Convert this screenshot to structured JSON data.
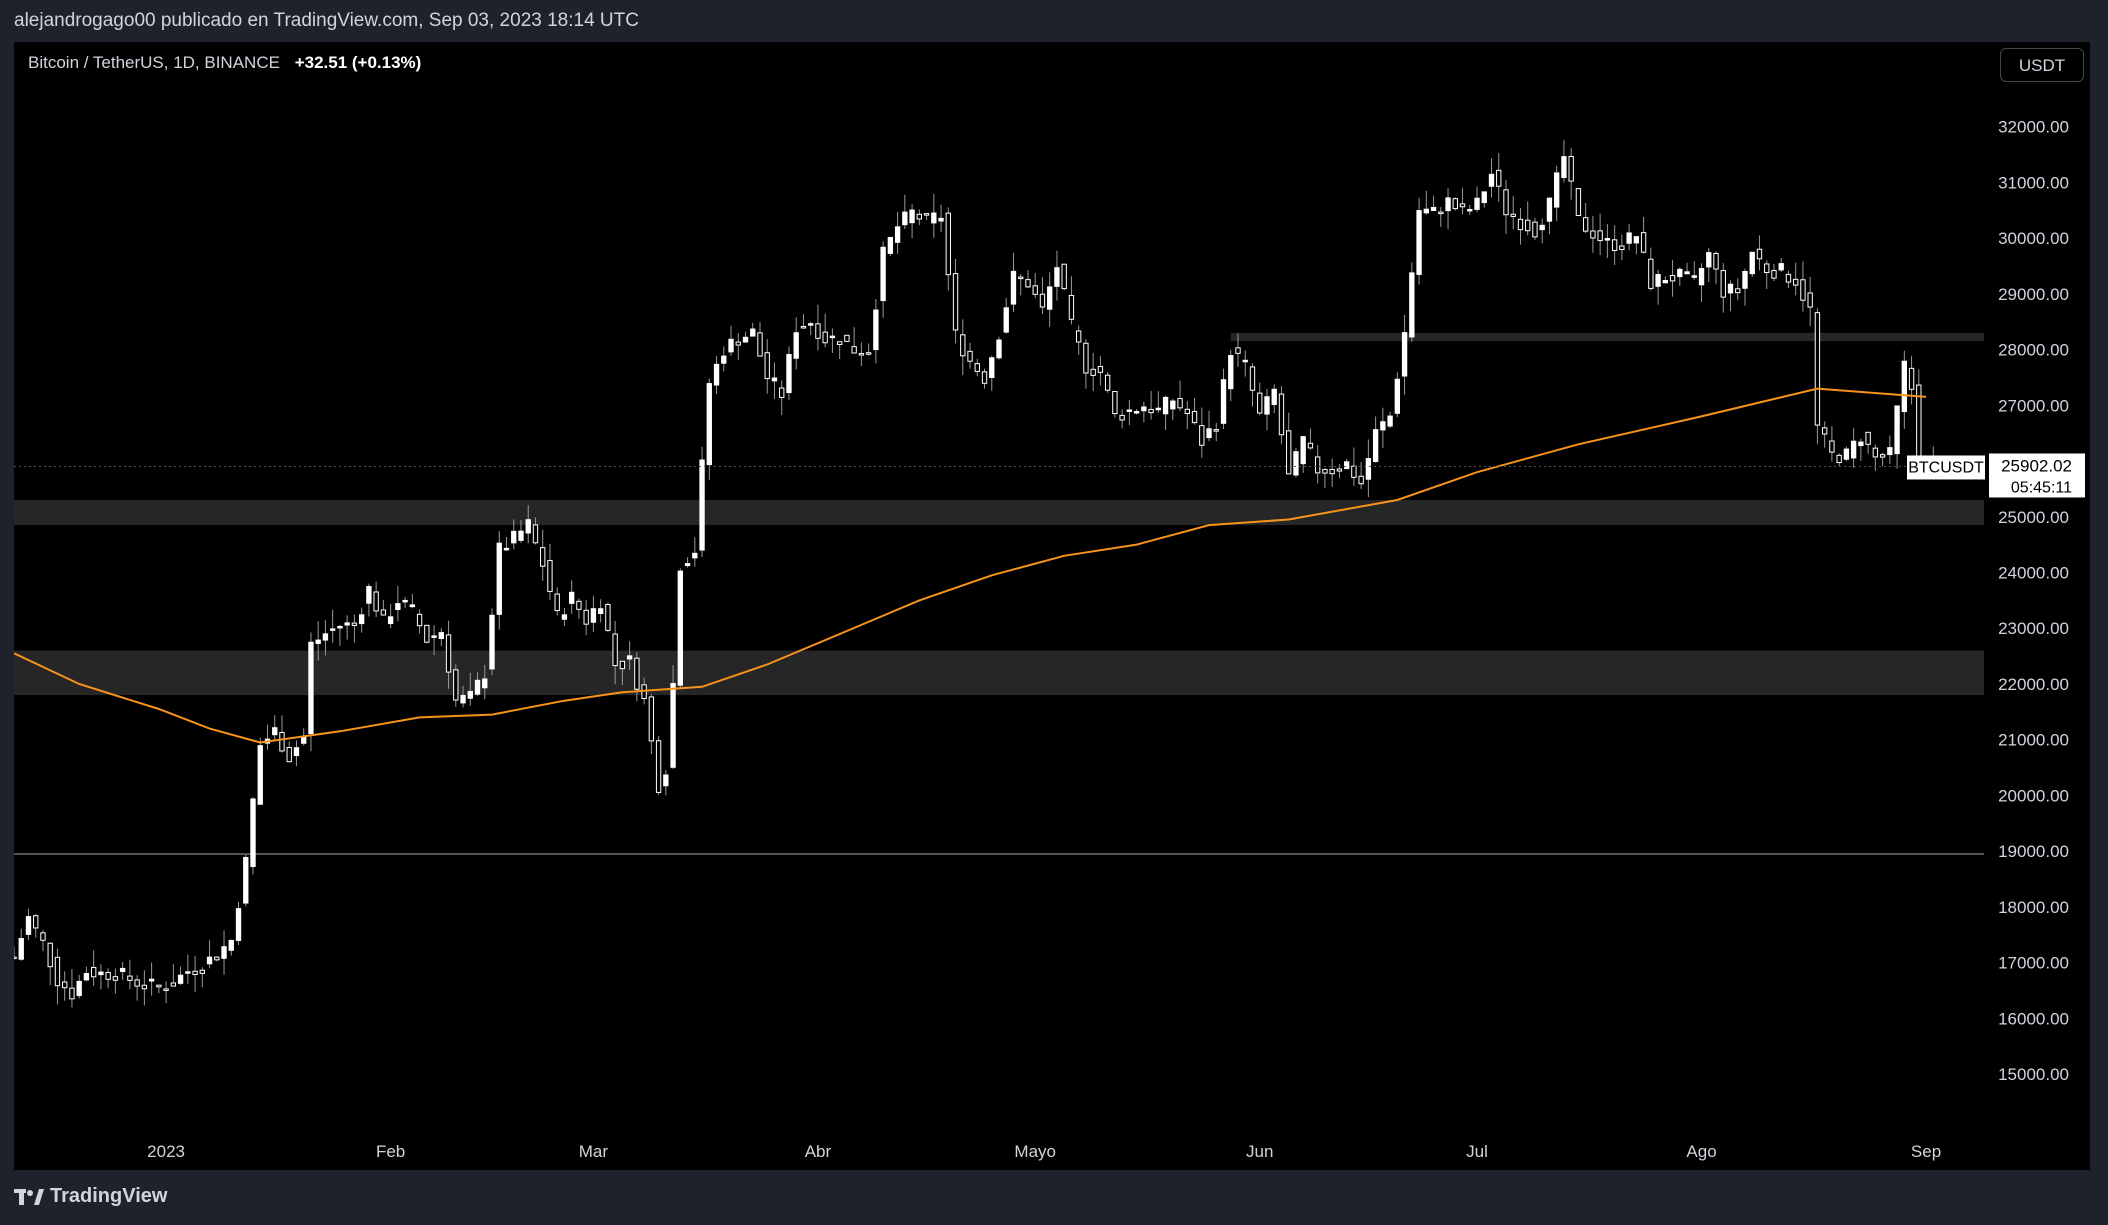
{
  "header": {
    "published": "alejandrogago00 publicado en TradingView.com, Sep 03, 2023 18:14 UTC"
  },
  "symbol": {
    "name": "Bitcoin / TetherUS, 1D, BINANCE",
    "change": "+32.51 (+0.13%)"
  },
  "currency_button": "USDT",
  "footer": {
    "brand": "TradingView",
    "logo_icon": "tradingview-logo-icon"
  },
  "colors": {
    "background": "#000000",
    "candle": "#ffffff",
    "ma": "#f7931a",
    "zone": "#262626",
    "axis_text": "#d1d4dc"
  },
  "chart_data": {
    "type": "candlestick",
    "ylim": [
      14500,
      32800
    ],
    "y_ticks": [
      15000,
      16000,
      17000,
      18000,
      19000,
      20000,
      21000,
      22000,
      23000,
      24000,
      25000,
      26000,
      27000,
      28000,
      29000,
      30000,
      31000,
      32000
    ],
    "x_ticks": [
      {
        "label": "2023",
        "date": "2023-01-01"
      },
      {
        "label": "Feb",
        "date": "2023-02-01"
      },
      {
        "label": "Mar",
        "date": "2023-03-01"
      },
      {
        "label": "Abr",
        "date": "2023-04-01"
      },
      {
        "label": "Mayo",
        "date": "2023-05-01"
      },
      {
        "label": "Jun",
        "date": "2023-06-01"
      },
      {
        "label": "Jul",
        "date": "2023-07-01"
      },
      {
        "label": "Ago",
        "date": "2023-08-01"
      },
      {
        "label": "Sep",
        "date": "2023-09-01"
      }
    ],
    "x_range": [
      "2022-12-11",
      "2023-09-09"
    ],
    "daily_close": [
      [
        "2022-12-11",
        17100
      ],
      [
        "2022-12-13",
        17800
      ],
      [
        "2022-12-15",
        17350
      ],
      [
        "2022-12-17",
        16700
      ],
      [
        "2022-12-19",
        16450
      ],
      [
        "2022-12-21",
        16850
      ],
      [
        "2022-12-23",
        16800
      ],
      [
        "2022-12-25",
        16820
      ],
      [
        "2022-12-27",
        16700
      ],
      [
        "2022-12-29",
        16600
      ],
      [
        "2022-12-31",
        16550
      ],
      [
        "2023-01-02",
        16650
      ],
      [
        "2023-01-04",
        16850
      ],
      [
        "2023-01-06",
        16950
      ],
      [
        "2023-01-08",
        17150
      ],
      [
        "2023-01-10",
        17400
      ],
      [
        "2023-01-12",
        18800
      ],
      [
        "2023-01-13",
        19900
      ],
      [
        "2023-01-14",
        20900
      ],
      [
        "2023-01-16",
        21150
      ],
      [
        "2023-01-18",
        20700
      ],
      [
        "2023-01-20",
        21050
      ],
      [
        "2023-01-21",
        22700
      ],
      [
        "2023-01-23",
        22900
      ],
      [
        "2023-01-25",
        23050
      ],
      [
        "2023-01-27",
        23050
      ],
      [
        "2023-01-29",
        23700
      ],
      [
        "2023-01-31",
        23100
      ],
      [
        "2023-02-02",
        23500
      ],
      [
        "2023-02-04",
        23300
      ],
      [
        "2023-02-06",
        22800
      ],
      [
        "2023-02-08",
        22950
      ],
      [
        "2023-02-10",
        21700
      ],
      [
        "2023-02-12",
        21750
      ],
      [
        "2023-02-14",
        22200
      ],
      [
        "2023-02-16",
        24400
      ],
      [
        "2023-02-18",
        24600
      ],
      [
        "2023-02-20",
        24850
      ],
      [
        "2023-02-22",
        24150
      ],
      [
        "2023-02-24",
        23200
      ],
      [
        "2023-02-26",
        23550
      ],
      [
        "2023-02-28",
        23150
      ],
      [
        "2023-03-02",
        23500
      ],
      [
        "2023-03-04",
        22350
      ],
      [
        "2023-03-06",
        22400
      ],
      [
        "2023-03-08",
        21700
      ],
      [
        "2023-03-10",
        20200
      ],
      [
        "2023-03-11",
        20500
      ],
      [
        "2023-03-12",
        22000
      ],
      [
        "2023-03-13",
        24150
      ],
      [
        "2023-03-15",
        24400
      ],
      [
        "2023-03-17",
        27400
      ],
      [
        "2023-03-19",
        28000
      ],
      [
        "2023-03-21",
        28200
      ],
      [
        "2023-03-23",
        28300
      ],
      [
        "2023-03-25",
        27500
      ],
      [
        "2023-03-27",
        27200
      ],
      [
        "2023-03-29",
        28400
      ],
      [
        "2023-03-31",
        28500
      ],
      [
        "2023-04-02",
        28200
      ],
      [
        "2023-04-04",
        28200
      ],
      [
        "2023-04-06",
        28000
      ],
      [
        "2023-04-08",
        28000
      ],
      [
        "2023-04-10",
        29700
      ],
      [
        "2023-04-12",
        30200
      ],
      [
        "2023-04-14",
        30450
      ],
      [
        "2023-04-16",
        30300
      ],
      [
        "2023-04-18",
        30400
      ],
      [
        "2023-04-20",
        28250
      ],
      [
        "2023-04-22",
        27800
      ],
      [
        "2023-04-24",
        27500
      ],
      [
        "2023-04-26",
        28300
      ],
      [
        "2023-04-28",
        29300
      ],
      [
        "2023-04-30",
        29200
      ],
      [
        "2023-05-02",
        28700
      ],
      [
        "2023-05-04",
        29500
      ],
      [
        "2023-05-06",
        28400
      ],
      [
        "2023-05-08",
        27700
      ],
      [
        "2023-05-10",
        27600
      ],
      [
        "2023-05-12",
        26800
      ],
      [
        "2023-05-14",
        26900
      ],
      [
        "2023-05-16",
        27000
      ],
      [
        "2023-05-18",
        26900
      ],
      [
        "2023-05-20",
        27100
      ],
      [
        "2023-05-22",
        26850
      ],
      [
        "2023-05-24",
        26350
      ],
      [
        "2023-05-26",
        26700
      ],
      [
        "2023-05-28",
        28000
      ],
      [
        "2023-05-30",
        27700
      ],
      [
        "2023-06-01",
        26800
      ],
      [
        "2023-06-03",
        27250
      ],
      [
        "2023-06-05",
        25700
      ],
      [
        "2023-06-07",
        26350
      ],
      [
        "2023-06-09",
        25850
      ],
      [
        "2023-06-11",
        25850
      ],
      [
        "2023-06-13",
        25950
      ],
      [
        "2023-06-15",
        25600
      ],
      [
        "2023-06-17",
        26500
      ],
      [
        "2023-06-19",
        26800
      ],
      [
        "2023-06-21",
        28300
      ],
      [
        "2023-06-23",
        30500
      ],
      [
        "2023-06-25",
        30450
      ],
      [
        "2023-06-27",
        30650
      ],
      [
        "2023-06-29",
        30450
      ],
      [
        "2023-07-01",
        30600
      ],
      [
        "2023-07-03",
        31150
      ],
      [
        "2023-07-05",
        30500
      ],
      [
        "2023-07-07",
        30300
      ],
      [
        "2023-07-09",
        30150
      ],
      [
        "2023-07-11",
        30600
      ],
      [
        "2023-07-13",
        31450
      ],
      [
        "2023-07-15",
        30300
      ],
      [
        "2023-07-17",
        30100
      ],
      [
        "2023-07-19",
        29900
      ],
      [
        "2023-07-21",
        29900
      ],
      [
        "2023-07-23",
        30050
      ],
      [
        "2023-07-25",
        29200
      ],
      [
        "2023-07-27",
        29300
      ],
      [
        "2023-07-29",
        29300
      ],
      [
        "2023-07-31",
        29200
      ],
      [
        "2023-08-02",
        29700
      ],
      [
        "2023-08-04",
        29050
      ],
      [
        "2023-08-06",
        29050
      ],
      [
        "2023-08-08",
        29750
      ],
      [
        "2023-08-10",
        29450
      ],
      [
        "2023-08-12",
        29400
      ],
      [
        "2023-08-14",
        29250
      ],
      [
        "2023-08-16",
        28700
      ],
      [
        "2023-08-17",
        26600
      ],
      [
        "2023-08-19",
        26100
      ],
      [
        "2023-08-21",
        26100
      ],
      [
        "2023-08-23",
        26450
      ],
      [
        "2023-08-25",
        26050
      ],
      [
        "2023-08-27",
        26100
      ],
      [
        "2023-08-29",
        27700
      ],
      [
        "2023-08-30",
        27300
      ],
      [
        "2023-08-31",
        25950
      ],
      [
        "2023-09-03",
        25902
      ]
    ],
    "series": [
      {
        "name": "",
        "type": "line",
        "values": [
          [
            "2022-12-11",
            22550
          ],
          [
            "2022-12-20",
            22000
          ],
          [
            "2022-12-31",
            21550
          ],
          [
            "2023-01-07",
            21200
          ],
          [
            "2023-01-14",
            20950
          ],
          [
            "2023-01-25",
            21150
          ],
          [
            "2023-02-05",
            21400
          ],
          [
            "2023-02-15",
            21450
          ],
          [
            "2023-02-25",
            21700
          ],
          [
            "2023-03-05",
            21850
          ],
          [
            "2023-03-16",
            21950
          ],
          [
            "2023-03-25",
            22350
          ],
          [
            "2023-04-05",
            22950
          ],
          [
            "2023-04-15",
            23500
          ],
          [
            "2023-04-25",
            23950
          ],
          [
            "2023-05-05",
            24300
          ],
          [
            "2023-05-15",
            24500
          ],
          [
            "2023-05-25",
            24850
          ],
          [
            "2023-06-05",
            24950
          ],
          [
            "2023-06-20",
            25300
          ],
          [
            "2023-07-01",
            25800
          ],
          [
            "2023-07-15",
            26300
          ],
          [
            "2023-08-01",
            26800
          ],
          [
            "2023-08-17",
            27300
          ],
          [
            "2023-09-01",
            27150
          ]
        ]
      }
    ],
    "zones": [
      {
        "from": 28150,
        "to": 28300,
        "start": "2023-05-28"
      },
      {
        "from": 24850,
        "to": 25300,
        "start": "2022-12-11"
      },
      {
        "from": 21800,
        "to": 22600,
        "start": "2022-12-11"
      }
    ],
    "horizontal_line": 18950,
    "last_price": {
      "symbol": "BTCUSDT",
      "price": "25902.02",
      "countdown": "05:45:11"
    },
    "grid": false
  }
}
